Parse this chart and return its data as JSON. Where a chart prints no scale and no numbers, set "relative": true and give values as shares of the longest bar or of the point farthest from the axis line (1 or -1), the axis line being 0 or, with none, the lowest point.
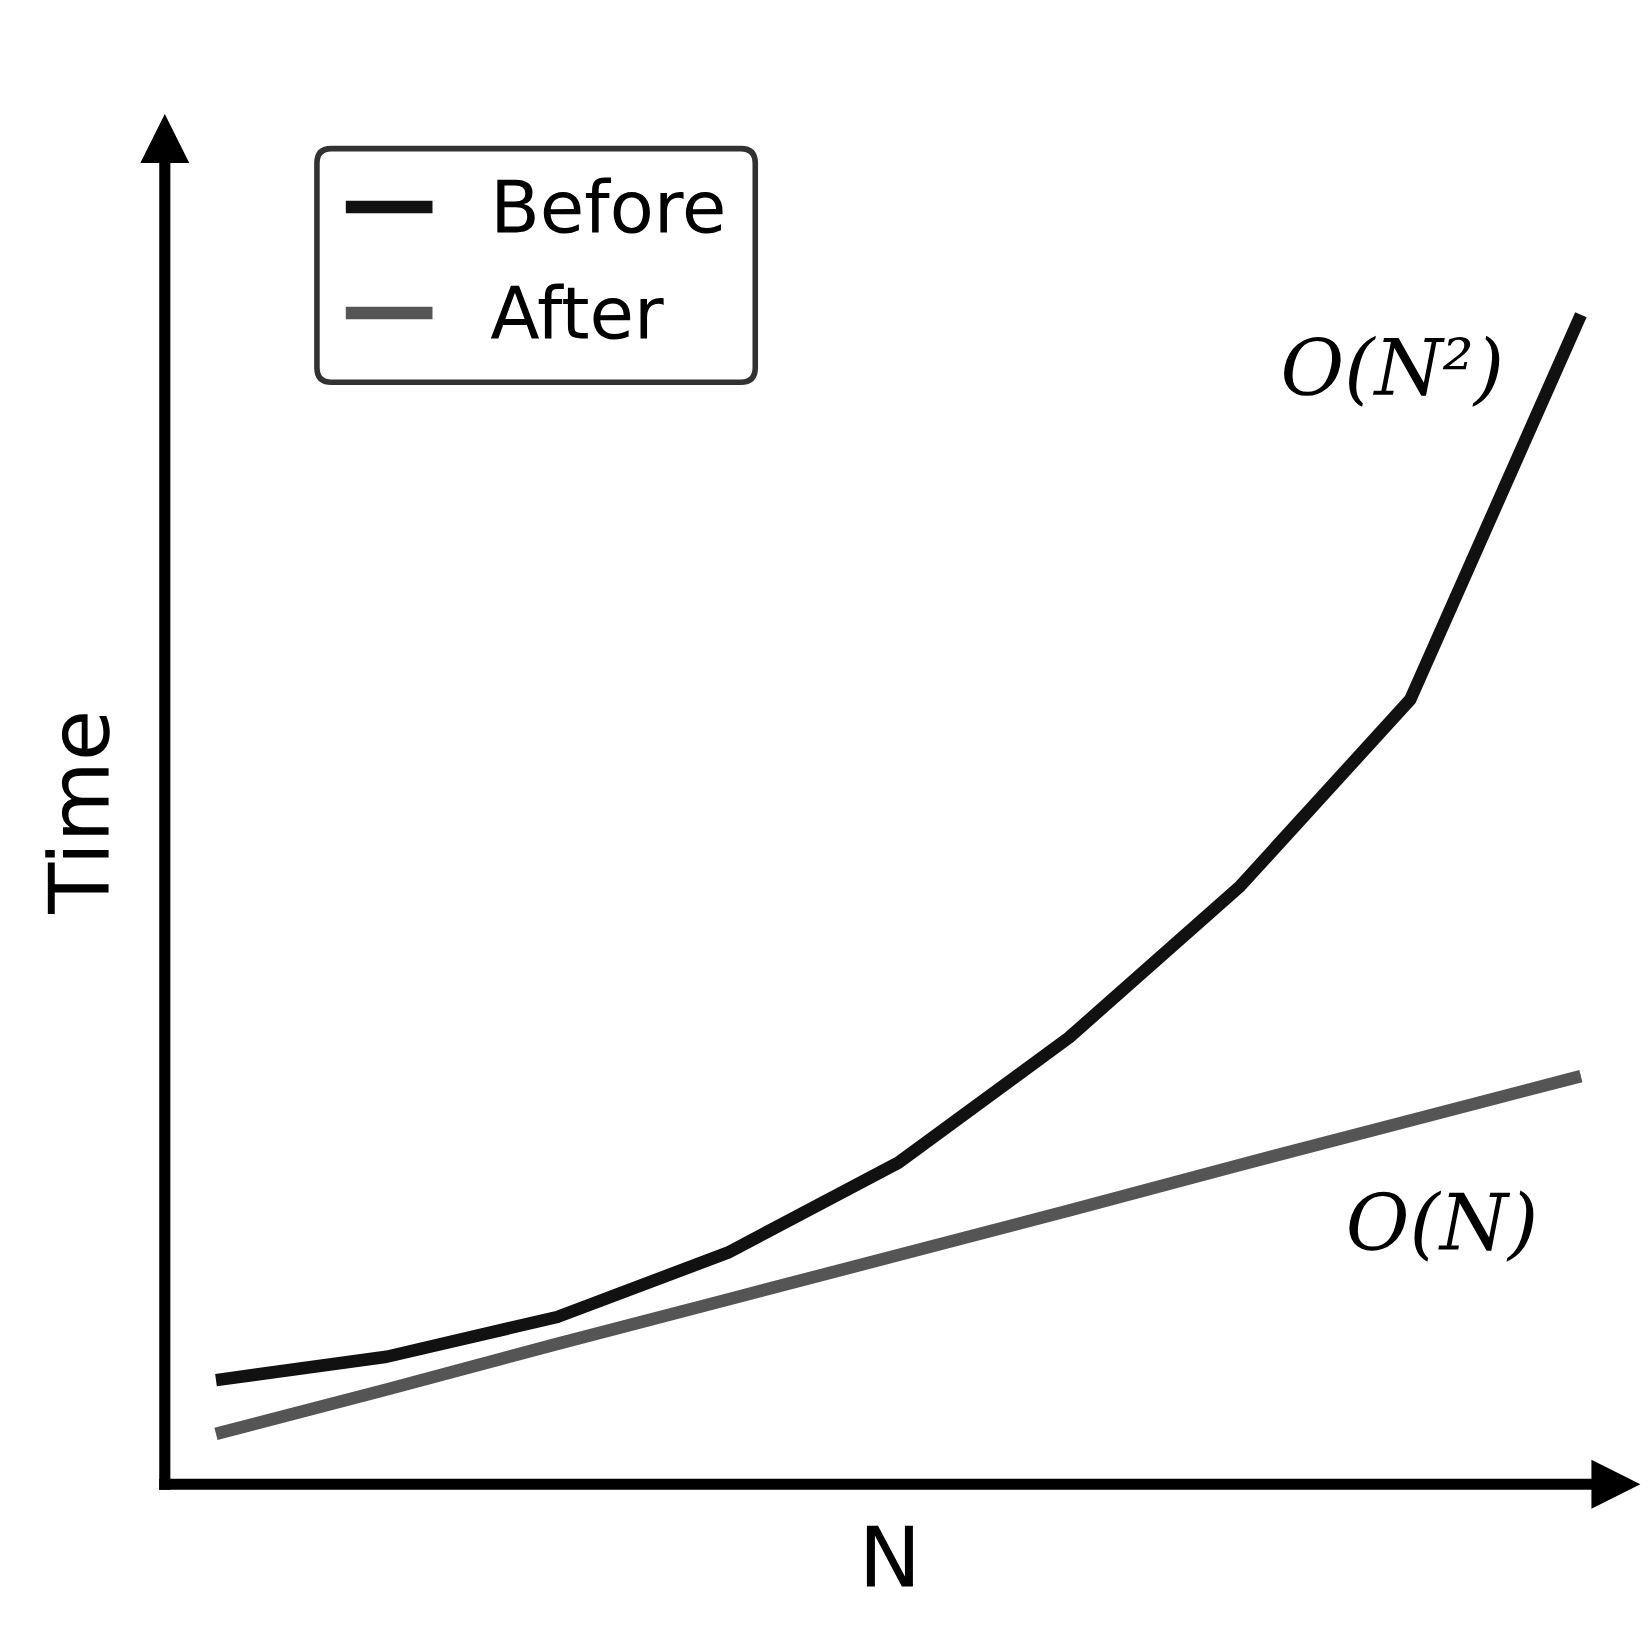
{
  "chart_data": {
    "type": "line",
    "relative": true,
    "xlabel": "N",
    "ylabel": "Time",
    "categories": [
      null,
      null,
      null,
      null,
      null,
      null,
      null,
      null,
      null
    ],
    "series": [
      {
        "name": "Before",
        "color": "#111111",
        "values": [
          0.089,
          0.109,
          0.143,
          0.198,
          0.275,
          0.382,
          0.511,
          0.671,
          1
        ]
      },
      {
        "name": "After",
        "color": "#555555",
        "values": [
          0.043,
          0.081,
          0.12,
          0.158,
          0.196,
          0.234,
          0.273,
          0.311,
          0.349
        ]
      }
    ],
    "annotations": [
      "O(N²)",
      "O(N)"
    ],
    "legend": "top left",
    "marker": "none",
    "line_style": "solid"
  }
}
